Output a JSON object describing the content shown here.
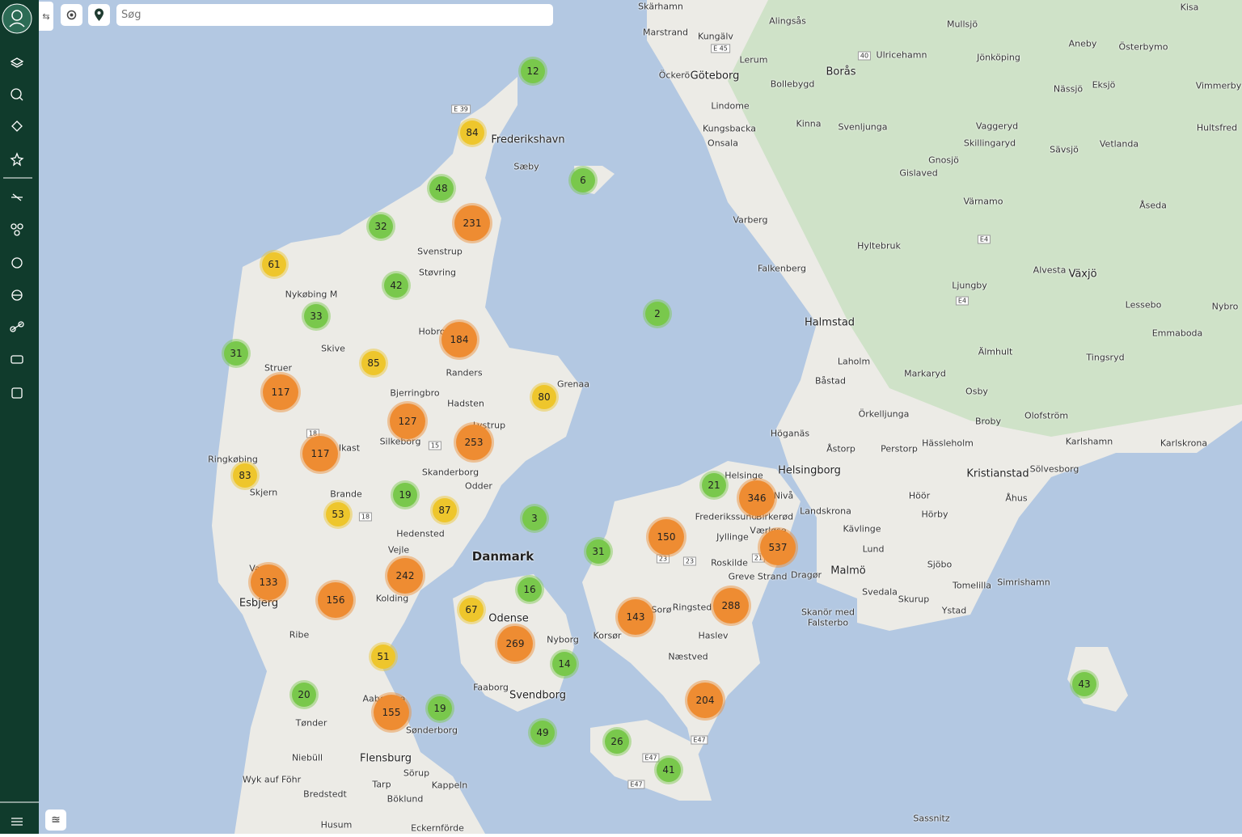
{
  "search": {
    "placeholder": "Søg"
  },
  "places": [
    "Skärhamn",
    "Marstrand",
    "Kungälv",
    "Alingsås",
    "Mullsjö",
    "Kisa",
    "Ulricehamn",
    "Jönköping",
    "Aneby",
    "Österbymo",
    "Öckerö",
    "Göteborg",
    "Lerum",
    "Bollebygd",
    "Borås",
    "Nässjö",
    "Eksjö",
    "Vimmerby",
    "Lindome",
    "Kinna",
    "Svenljunga",
    "Vaggeryd",
    "Hultsfred",
    "Kungsbacka",
    "Onsala",
    "Skillingaryd",
    "Sävsjö",
    "Vetlanda",
    "Frederikshavn",
    "Sæby",
    "Gnosjö",
    "Gislaved",
    "Värnamo",
    "Åseda",
    "Varberg",
    "Hyltebruk",
    "Svenstrup",
    "Støvring",
    "Falkenberg",
    "Alvesta",
    "Växjö",
    "Ljungby",
    "Nykøbing M",
    "Lessebo",
    "Nybro",
    "Halmstad",
    "Hobro",
    "Emmaboda",
    "Skive",
    "Älmhult",
    "Tingsryd",
    "Laholm",
    "Randers",
    "Markaryd",
    "Struer",
    "Båstad",
    "Grenaa",
    "Osby",
    "Bjerringbro",
    "Hadsten",
    "Örkelljunga",
    "Olofström",
    "Broby",
    "Lystrup",
    "Karlshamn",
    "Karlskrona",
    "Silkeborg",
    "Höganäs",
    "Åstorp",
    "Perstorp",
    "Hässleholm",
    "Ikast",
    "Sölvesborg",
    "Kristianstad",
    "Helsingborg",
    "Helsinge",
    "Skanderborg",
    "Ringkøbing",
    "Nivå",
    "Åhus",
    "Odder",
    "Skjern",
    "Brande",
    "Hörby",
    "Höör",
    "Landskrona",
    "Frederikssund",
    "Birkerød",
    "Kävlinge",
    "Værløse",
    "Hedensted",
    "Jyllinge",
    "Danmark",
    "Vejle",
    "Lund",
    "Roskilde",
    "Sjöbo",
    "Varde",
    "Malmö",
    "Dragør",
    "Greve Strand",
    "Esbjerg",
    "Kolding",
    "Tomelilla",
    "Simrishamn",
    "Svedala",
    "Skurup",
    "Ringsted",
    "Sorø",
    "Odense",
    "Ystad",
    "Skanör med",
    "Falsterbo",
    "Ribe",
    "Korsør",
    "Nyborg",
    "Haslev",
    "Næstved",
    "Faaborg",
    "Svendborg",
    "Aabenraa",
    "Tønder",
    "Sønderborg",
    "Niebüll",
    "Flensburg",
    "Sörup",
    "Wyk auf Föhr",
    "Tarp",
    "Kappeln",
    "Bredstedt",
    "Böklund",
    "Husum",
    "Eckernförde",
    "Sassnitz"
  ],
  "roads": [
    "E 39",
    "E 45",
    "40",
    "E4",
    "E4",
    "18",
    "15",
    "18",
    "23",
    "23",
    "21",
    "E47",
    "E47",
    "E47"
  ],
  "clusters": [
    12,
    84,
    6,
    48,
    231,
    32,
    61,
    42,
    33,
    2,
    184,
    31,
    85,
    117,
    80,
    127,
    253,
    117,
    83,
    21,
    346,
    19,
    87,
    53,
    3,
    150,
    537,
    31,
    133,
    242,
    156,
    16,
    67,
    288,
    143,
    269,
    51,
    14,
    20,
    43,
    204,
    19,
    155,
    49,
    26,
    41
  ]
}
